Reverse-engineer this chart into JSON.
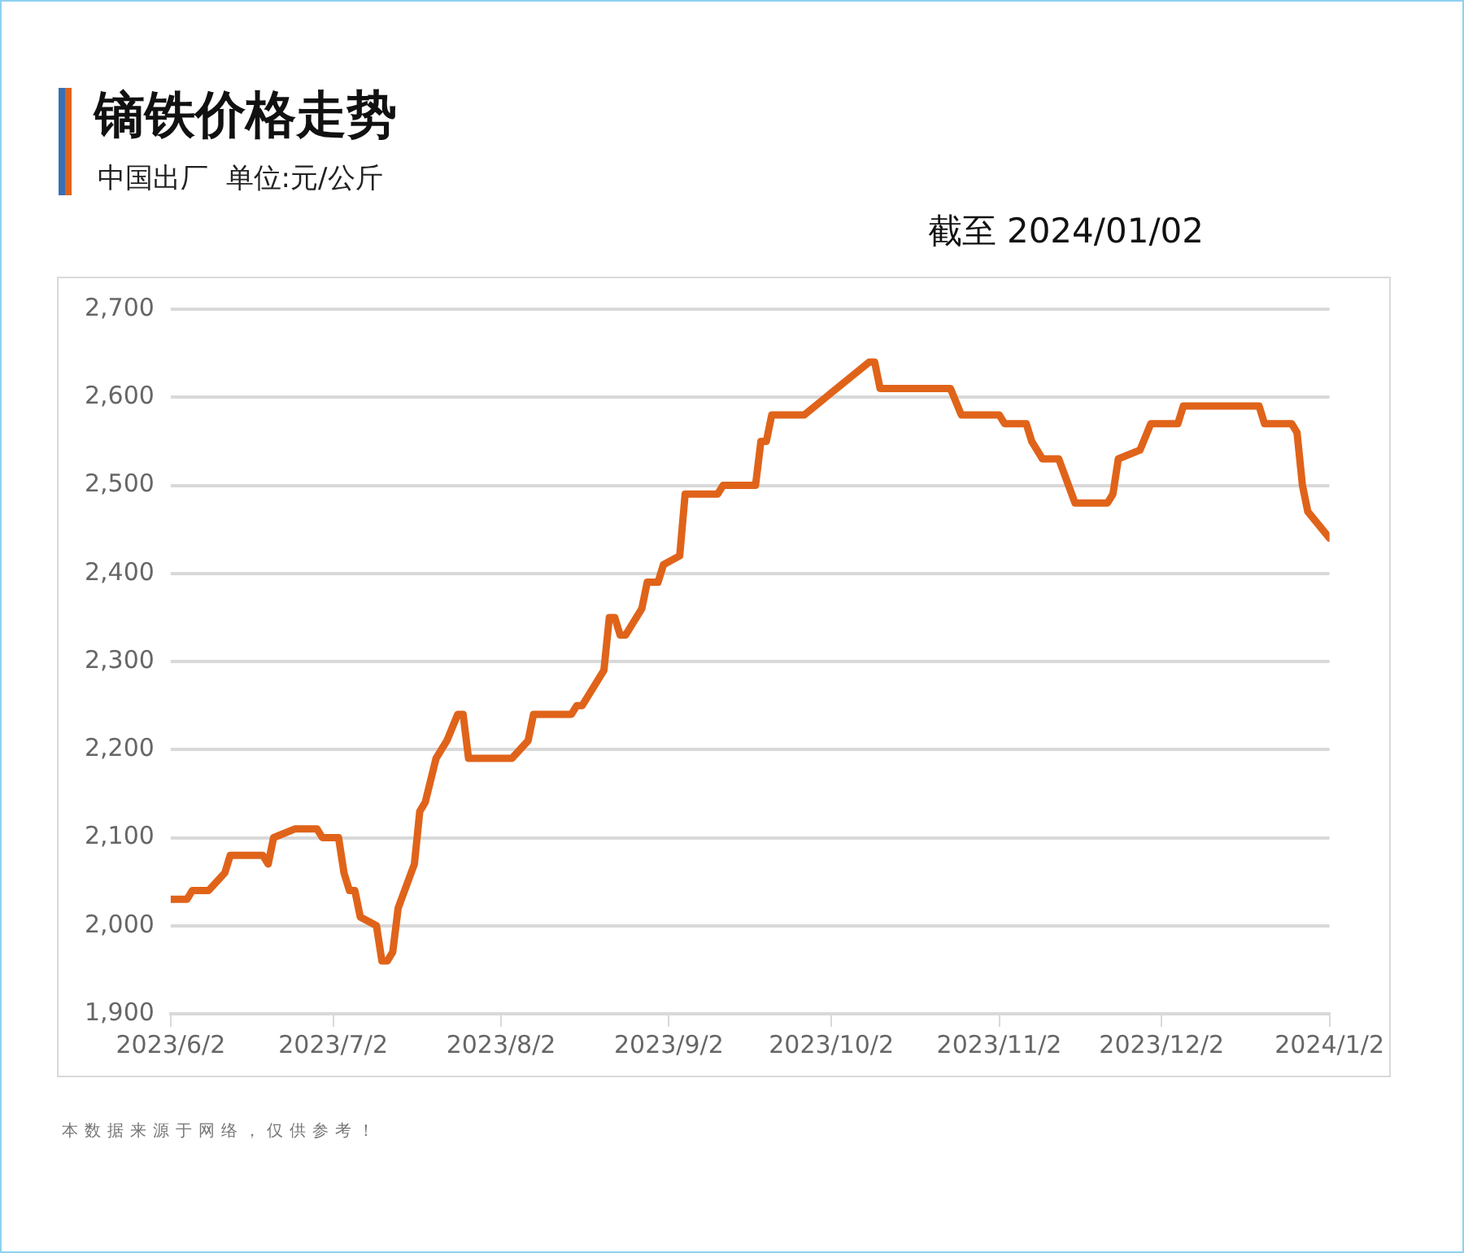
{
  "chart_data": {
    "type": "line",
    "title": "镝铁价格走势",
    "subtitle": "中国出厂  单位:元/公斤",
    "annotations": [
      "截至 2024/01/02",
      "本数据来源于网络，仅供参考！"
    ],
    "x": [
      "2023-06-02",
      "2023-06-05",
      "2023-06-06",
      "2023-06-09",
      "2023-06-12",
      "2023-06-13",
      "2023-06-19",
      "2023-06-20",
      "2023-06-21",
      "2023-06-25",
      "2023-06-29",
      "2023-06-30",
      "2023-07-03",
      "2023-07-04",
      "2023-07-05",
      "2023-07-06",
      "2023-07-07",
      "2023-07-10",
      "2023-07-11",
      "2023-07-12",
      "2023-07-13",
      "2023-07-14",
      "2023-07-17",
      "2023-07-18",
      "2023-07-19",
      "2023-07-21",
      "2023-07-23",
      "2023-07-25",
      "2023-07-26",
      "2023-07-27",
      "2023-08-04",
      "2023-08-07",
      "2023-08-08",
      "2023-08-15",
      "2023-08-16",
      "2023-08-17",
      "2023-08-21",
      "2023-08-22",
      "2023-08-23",
      "2023-08-24",
      "2023-08-25",
      "2023-08-28",
      "2023-08-29",
      "2023-08-31",
      "2023-09-01",
      "2023-09-04",
      "2023-09-05",
      "2023-09-11",
      "2023-09-12",
      "2023-09-18",
      "2023-09-19",
      "2023-09-20",
      "2023-09-21",
      "2023-09-27",
      "2023-10-09",
      "2023-10-10",
      "2023-10-11",
      "2023-10-24",
      "2023-10-26",
      "2023-11-02",
      "2023-11-03",
      "2023-11-07",
      "2023-11-08",
      "2023-11-10",
      "2023-11-13",
      "2023-11-16",
      "2023-11-22",
      "2023-11-23",
      "2023-11-24",
      "2023-11-28",
      "2023-11-30",
      "2023-12-05",
      "2023-12-06",
      "2023-12-20",
      "2023-12-21",
      "2023-12-26",
      "2023-12-27",
      "2023-12-28",
      "2023-12-29",
      "2024-01-02"
    ],
    "series": [
      {
        "color": "#e0631a",
        "values": [
          2030,
          2030,
          2040,
          2040,
          2060,
          2080,
          2080,
          2070,
          2100,
          2110,
          2110,
          2100,
          2100,
          2060,
          2040,
          2040,
          2010,
          2000,
          1960,
          1960,
          1970,
          2020,
          2070,
          2130,
          2140,
          2190,
          2210,
          2240,
          2240,
          2190,
          2190,
          2210,
          2240,
          2240,
          2250,
          2250,
          2290,
          2350,
          2350,
          2330,
          2330,
          2360,
          2390,
          2390,
          2410,
          2420,
          2490,
          2490,
          2500,
          2500,
          2550,
          2550,
          2580,
          2580,
          2640,
          2640,
          2610,
          2610,
          2580,
          2580,
          2570,
          2570,
          2550,
          2530,
          2530,
          2480,
          2480,
          2490,
          2530,
          2540,
          2570,
          2570,
          2590,
          2590,
          2570,
          2570,
          2560,
          2500,
          2470,
          2440
        ]
      }
    ],
    "xlim": [
      "2023-06-02",
      "2024-01-02"
    ],
    "xticks": [
      {
        "value": "2023-06-02",
        "label": "2023/6/2"
      },
      {
        "value": "2023-07-02",
        "label": "2023/7/2"
      },
      {
        "value": "2023-08-02",
        "label": "2023/8/2"
      },
      {
        "value": "2023-09-02",
        "label": "2023/9/2"
      },
      {
        "value": "2023-10-02",
        "label": "2023/10/2"
      },
      {
        "value": "2023-11-02",
        "label": "2023/11/2"
      },
      {
        "value": "2023-12-02",
        "label": "2023/12/2"
      },
      {
        "value": "2024-01-02",
        "label": "2024/1/2"
      }
    ],
    "ylim": [
      1900,
      2700
    ],
    "yticks": [
      {
        "value": 1900,
        "label": "1,900"
      },
      {
        "value": 2000,
        "label": "2,000"
      },
      {
        "value": 2100,
        "label": "2,100"
      },
      {
        "value": 2200,
        "label": "2,200"
      },
      {
        "value": 2300,
        "label": "2,300"
      },
      {
        "value": 2400,
        "label": "2,400"
      },
      {
        "value": 2500,
        "label": "2,500"
      },
      {
        "value": 2600,
        "label": "2,600"
      },
      {
        "value": 2700,
        "label": "2,700"
      }
    ],
    "grid": "y",
    "legend": false,
    "marker": "none",
    "line_style": "solid"
  }
}
